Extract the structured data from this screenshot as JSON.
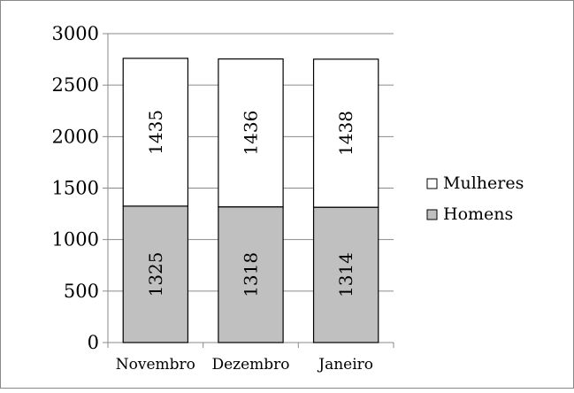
{
  "chart_data": {
    "type": "bar",
    "stacked": true,
    "orientation": "vertical",
    "categories": [
      "Novembro",
      "Dezembro",
      "Janeiro"
    ],
    "series": [
      {
        "name": "Homens",
        "values": [
          1325,
          1318,
          1314
        ],
        "color": "#c0c0c0"
      },
      {
        "name": "Mulheres",
        "values": [
          1435,
          1436,
          1438
        ],
        "color": "#ffffff"
      }
    ],
    "ylim": [
      0,
      3000
    ],
    "yticks": [
      0,
      500,
      1000,
      1500,
      2000,
      2500,
      3000
    ],
    "grid": true,
    "legend": {
      "position": "right",
      "order": [
        "Mulheres",
        "Homens"
      ]
    },
    "data_labels": true,
    "data_label_rotation": "vertical",
    "title": "",
    "xlabel": "",
    "ylabel": ""
  }
}
